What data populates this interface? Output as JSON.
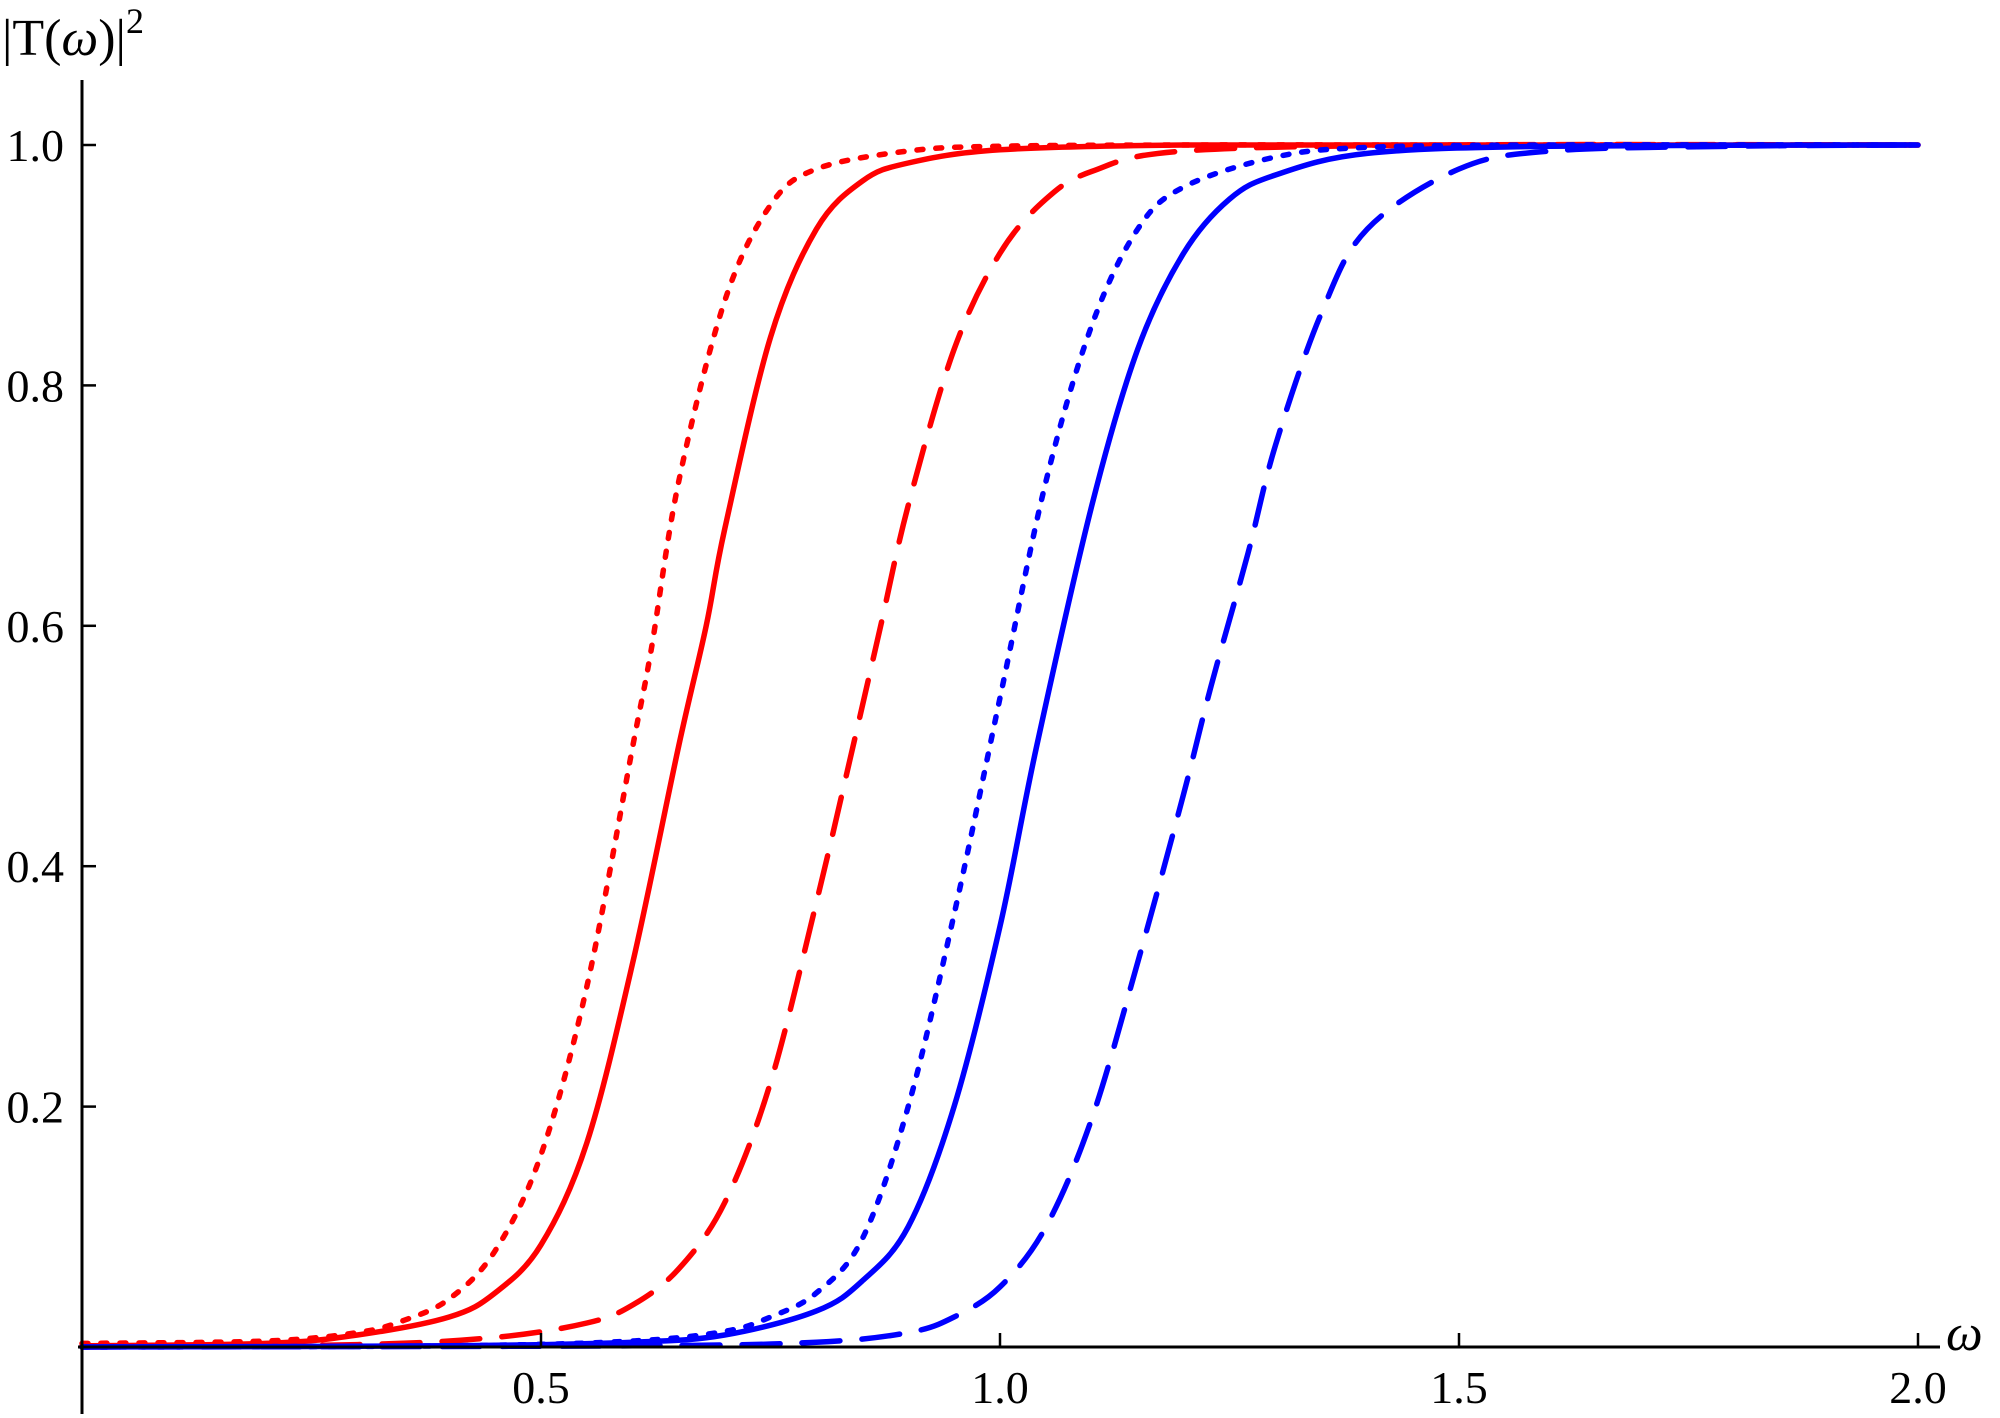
{
  "chart_data": {
    "type": "line",
    "title": "",
    "xlabel": "ω",
    "ylabel_parts": {
      "prefix": "|T(",
      "var": "ω",
      "suffix": ")|",
      "sup": "2"
    },
    "xlim": [
      0,
      2.0
    ],
    "ylim": [
      0,
      1.05
    ],
    "x_ticks": [
      0.5,
      1.0,
      1.5,
      2.0
    ],
    "x_tick_labels": [
      "0.5",
      "1.0",
      "1.5",
      "2.0"
    ],
    "y_ticks": [
      0.2,
      0.4,
      0.6,
      0.8,
      1.0
    ],
    "y_tick_labels": [
      "0.2",
      "0.4",
      "0.6",
      "0.8",
      "1.0"
    ],
    "grid": false,
    "legend": "none",
    "series": [
      {
        "color": "#ff0000",
        "style": "dotted",
        "x": [
          0.0,
          0.2,
          0.3,
          0.35,
          0.4,
          0.45,
          0.5,
          0.55,
          0.6,
          0.62,
          0.65,
          0.7,
          0.75,
          0.8,
          0.9,
          1.0,
          1.2,
          1.5,
          2.0
        ],
        "y": [
          0.003,
          0.005,
          0.012,
          0.022,
          0.04,
          0.08,
          0.16,
          0.3,
          0.5,
          0.58,
          0.72,
          0.87,
          0.95,
          0.98,
          0.995,
          0.999,
          1.0,
          1.0,
          1.0
        ]
      },
      {
        "color": "#ff0000",
        "style": "solid",
        "x": [
          0.0,
          0.2,
          0.3,
          0.4,
          0.45,
          0.5,
          0.55,
          0.6,
          0.65,
          0.68,
          0.7,
          0.75,
          0.8,
          0.85,
          0.9,
          1.0,
          1.2,
          1.5,
          2.0
        ],
        "y": [
          0.001,
          0.003,
          0.01,
          0.025,
          0.045,
          0.085,
          0.17,
          0.32,
          0.5,
          0.6,
          0.68,
          0.84,
          0.93,
          0.97,
          0.985,
          0.996,
          1.0,
          1.0,
          1.0
        ]
      },
      {
        "color": "#ff0000",
        "style": "dashed",
        "x": [
          0.0,
          0.3,
          0.45,
          0.55,
          0.6,
          0.65,
          0.7,
          0.75,
          0.8,
          0.84,
          0.87,
          0.9,
          0.95,
          1.0,
          1.05,
          1.1,
          1.2,
          1.5,
          2.0
        ],
        "y": [
          0.0,
          0.002,
          0.008,
          0.02,
          0.035,
          0.065,
          0.12,
          0.22,
          0.37,
          0.5,
          0.6,
          0.7,
          0.83,
          0.91,
          0.955,
          0.978,
          0.995,
          1.0,
          1.0
        ]
      },
      {
        "color": "#0000ff",
        "style": "dotted",
        "x": [
          0.0,
          0.4,
          0.6,
          0.7,
          0.75,
          0.8,
          0.85,
          0.9,
          0.95,
          1.0,
          1.05,
          1.1,
          1.15,
          1.2,
          1.3,
          1.4,
          1.6,
          2.0
        ],
        "y": [
          0.0,
          0.001,
          0.005,
          0.013,
          0.025,
          0.045,
          0.09,
          0.2,
          0.36,
          0.54,
          0.72,
          0.85,
          0.93,
          0.965,
          0.99,
          0.998,
          1.0,
          1.0
        ]
      },
      {
        "color": "#0000ff",
        "style": "solid",
        "x": [
          0.0,
          0.4,
          0.6,
          0.7,
          0.8,
          0.85,
          0.9,
          0.95,
          1.0,
          1.04,
          1.1,
          1.15,
          1.2,
          1.25,
          1.3,
          1.4,
          1.6,
          2.0
        ],
        "y": [
          0.0,
          0.001,
          0.004,
          0.01,
          0.03,
          0.055,
          0.1,
          0.2,
          0.35,
          0.5,
          0.7,
          0.83,
          0.91,
          0.955,
          0.975,
          0.993,
          0.999,
          1.0
        ]
      },
      {
        "color": "#0000ff",
        "style": "dashed",
        "x": [
          0.0,
          0.6,
          0.8,
          0.9,
          0.95,
          1.0,
          1.05,
          1.1,
          1.15,
          1.2,
          1.23,
          1.27,
          1.3,
          1.35,
          1.4,
          1.5,
          1.6,
          1.8,
          2.0
        ],
        "y": [
          0.0,
          0.001,
          0.004,
          0.012,
          0.025,
          0.05,
          0.1,
          0.19,
          0.32,
          0.46,
          0.55,
          0.66,
          0.75,
          0.86,
          0.93,
          0.98,
          0.995,
          0.999,
          1.0
        ]
      }
    ]
  }
}
